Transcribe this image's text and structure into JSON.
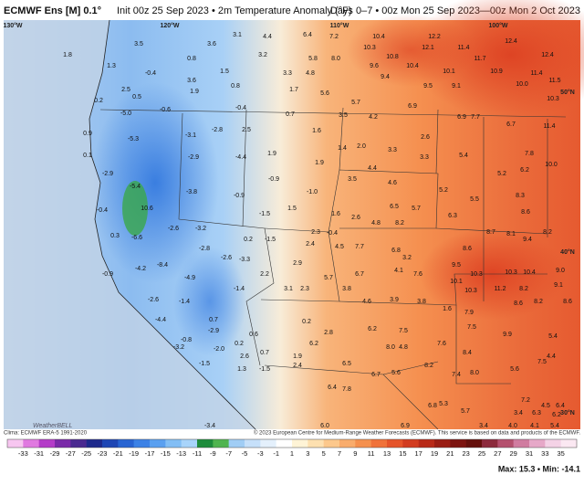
{
  "header": {
    "model": "ECMWF Ens [M] 0.1°",
    "init": "Init 00z 25 Sep 2023 • 2m Temperature Anomaly (°F)",
    "period": "Days 0–7 • 00z Mon 25 Sep 2023—00z Mon 2 Oct 2023"
  },
  "map": {
    "geo_labels": [
      "130°W",
      "120°W",
      "110°W",
      "100°W",
      "50°N",
      "40°N",
      "30°N"
    ],
    "logo": "WeatherBELL",
    "labels": [
      "3.5",
      "3.6",
      "3.1",
      "4.4",
      "6.4",
      "7.2",
      "10.3",
      "10.4",
      "12.2",
      "12.1",
      "11.4",
      "12.4",
      "12.4",
      "1.8",
      "1.3",
      "0.8",
      "3.2",
      "5.8",
      "8.0",
      "10.8",
      "10.4",
      "10.1",
      "11.7",
      "10.9",
      "11.4",
      "11.5",
      "-0.4",
      "3.6",
      "1.5",
      "3.3",
      "4.8",
      "9.6",
      "9.4",
      "9.5",
      "9.1",
      "10.0",
      "10.3",
      "2.5",
      "0.5",
      "1.9",
      "0.8",
      "1.7",
      "5.6",
      "0.2",
      "-5.0",
      "-0.6",
      "-0.4",
      "0.7",
      "3.5",
      "5.7",
      "4.2",
      "6.9",
      "6.9",
      "7.7",
      "11.4",
      "0.9",
      "-5.3",
      "-3.1",
      "-2.8",
      "2.5",
      "1.6",
      "1.4",
      "2.0",
      "3.3",
      "2.6",
      "6.7",
      "0.1",
      "-2.9",
      "-2.9",
      "-4.4",
      "1.9",
      "1.9",
      "4.4",
      "3.3",
      "5.4",
      "7.8",
      "5.2",
      "6.2",
      "10.0",
      "-5.4",
      "-3.8",
      "-0.9",
      "-0.9",
      "-1.0",
      "3.5",
      "4.6",
      "5.2",
      "5.5",
      "8.3",
      "-0.4",
      "10.6",
      "-2.6",
      "-3.2",
      "-1.5",
      "1.5",
      "2.3",
      "-0.4",
      "1.6",
      "2.6",
      "4.8",
      "6.5",
      "8.2",
      "5.7",
      "6.3",
      "8.6",
      "0.3",
      "-6.6",
      "-2.8",
      "0.2",
      "-1.5",
      "2.4",
      "4.5",
      "7.7",
      "6.8",
      "3.2",
      "8.6",
      "8.7",
      "8.1",
      "9.4",
      "8.2",
      "-2.6",
      "-3.3",
      "-4.2",
      "-0.9",
      "-8.4",
      "-4.9",
      "2.2",
      "2.9",
      "5.7",
      "6.7",
      "4.1",
      "7.6",
      "9.5",
      "10.3",
      "10.3",
      "10.4",
      "9.0",
      "9.1",
      "3.1",
      "2.3",
      "3.8",
      "10.1",
      "10.3",
      "11.2",
      "8.2",
      "-2.6",
      "-1.4",
      "-1.4",
      "4.6",
      "3.9",
      "3.8",
      "1.6",
      "8.6",
      "8.2",
      "8.6",
      "-4.4",
      "0.7",
      "0.2",
      "7.5",
      "6.2",
      "7.9",
      "7.5",
      "-2.9",
      "-0.8",
      "0.6",
      "2.8",
      "4.8",
      "7.6",
      "8.0",
      "9.9",
      "5.4",
      "-3.2",
      "-2.0",
      "0.2",
      "2.6",
      "0.7",
      "6.2",
      "8.4",
      "4.4",
      "1.9",
      "6.5",
      "8.2",
      "-1.5",
      "1.3",
      "-1.5",
      "2.4",
      "6.7",
      "5.6",
      "7.4",
      "8.0",
      "5.6",
      "7.5",
      "6.4",
      "7.8",
      "6.8",
      "5.3",
      "5.7",
      "7.2",
      "4.5",
      "6.4",
      "3.4",
      "6.3",
      "6.2",
      "6.0",
      "-3.4",
      "6.9",
      "3.4",
      "4.0",
      "4.1",
      "5.4"
    ]
  },
  "colorbar": {
    "ticks": [
      "-33",
      "-31",
      "-29",
      "-27",
      "-25",
      "-23",
      "-21",
      "-19",
      "-17",
      "-15",
      "-13",
      "-11",
      "-9",
      "-7",
      "-5",
      "-3",
      "-1",
      "1",
      "3",
      "5",
      "7",
      "9",
      "11",
      "13",
      "15",
      "17",
      "19",
      "21",
      "23",
      "25",
      "27",
      "29",
      "31",
      "33",
      "35"
    ],
    "colors": [
      "#f7c6f0",
      "#e07ae0",
      "#b43cc8",
      "#7a2aa8",
      "#4a2a90",
      "#1e2a8c",
      "#1e46b4",
      "#2864d2",
      "#3c82e6",
      "#5aa0f0",
      "#82bef5",
      "#a8d4fa",
      "#1e8c3c",
      "#50b450",
      "#a0cdf5",
      "#c6e0fa",
      "#e4f0fc",
      "#ffffff",
      "#fff4d6",
      "#fde0b0",
      "#fcc88c",
      "#f9ac6c",
      "#f5904e",
      "#f0723a",
      "#e5542a",
      "#d23c20",
      "#b82a18",
      "#9a1e14",
      "#7c1410",
      "#64100c",
      "#8c2a3c",
      "#b4506e",
      "#d07ca0",
      "#e6a8c8",
      "#f4d2e6",
      "#fbe8f2"
    ]
  },
  "footer": {
    "clima": "Clima: ECMWF ERA-5 1991-2020",
    "copyright": "© 2023 European Centre for Medium-Range Weather Forecasts (ECMWF). This service is based on data and products of the ECMWF.",
    "extremes": "Max: 15.3 • Min: -14.1"
  }
}
